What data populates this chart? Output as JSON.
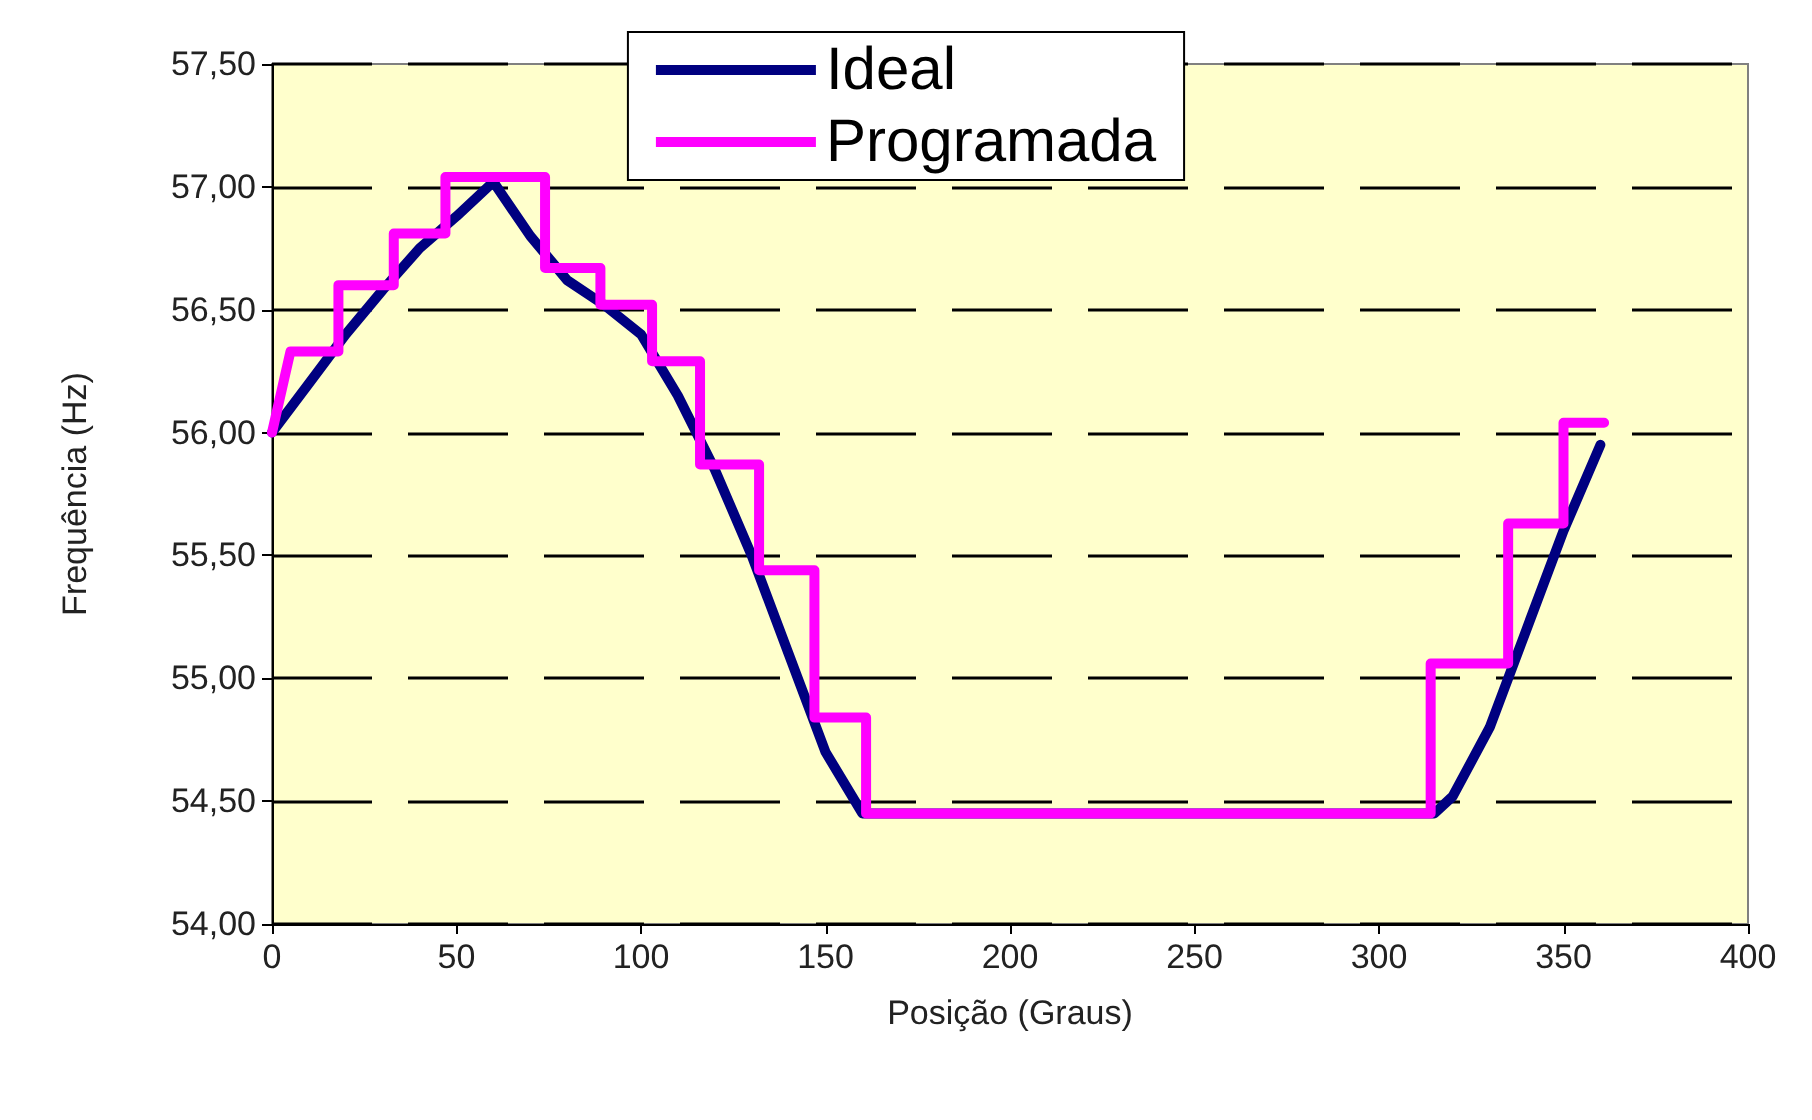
{
  "chart_data": {
    "type": "line",
    "xlabel": "Posição (Graus)",
    "ylabel": "Frequência (Hz)",
    "xlim": [
      0,
      400
    ],
    "xticks": [
      0,
      50,
      100,
      150,
      200,
      250,
      300,
      350,
      400
    ],
    "ylim": [
      54,
      57.5
    ],
    "yticks": [
      {
        "value": 54,
        "label": "54,00"
      },
      {
        "value": 54.5,
        "label": "54,50"
      },
      {
        "value": 55,
        "label": "55,00"
      },
      {
        "value": 55.5,
        "label": "55,50"
      },
      {
        "value": 56,
        "label": "56,00"
      },
      {
        "value": 56.5,
        "label": "56,50"
      },
      {
        "value": 57,
        "label": "57,00"
      },
      {
        "value": 57.5,
        "label": "57,50"
      }
    ],
    "grid": "y",
    "legend": "top",
    "marker": "none",
    "line_style": "solid",
    "series": [
      {
        "name": "Ideal",
        "color": "#000080",
        "x": [
          0,
          10,
          20,
          30,
          40,
          50,
          60,
          70,
          80,
          90,
          100,
          110,
          120,
          130,
          140,
          150,
          160,
          200,
          250,
          300,
          315,
          320,
          330,
          340,
          350,
          360
        ],
        "values": [
          56.0,
          56.2,
          56.4,
          56.58,
          56.75,
          56.88,
          57.02,
          56.8,
          56.62,
          56.52,
          56.4,
          56.15,
          55.85,
          55.5,
          55.1,
          54.7,
          54.45,
          54.45,
          54.45,
          54.45,
          54.45,
          54.52,
          54.8,
          55.2,
          55.6,
          55.95
        ]
      },
      {
        "name": "Programada",
        "color": "#ff00ff",
        "x": [
          0,
          5,
          18,
          18,
          33,
          33,
          47,
          47,
          74,
          74,
          89,
          89,
          103,
          103,
          116,
          116,
          132,
          132,
          147,
          147,
          161,
          161,
          314,
          314,
          335,
          335,
          350,
          350,
          361
        ],
        "values": [
          56.0,
          56.33,
          56.33,
          56.6,
          56.6,
          56.81,
          56.81,
          57.04,
          57.04,
          56.67,
          56.67,
          56.52,
          56.52,
          56.29,
          56.29,
          55.87,
          55.87,
          55.44,
          55.44,
          54.84,
          54.84,
          54.45,
          54.45,
          55.06,
          55.06,
          55.63,
          55.63,
          56.04,
          56.04
        ]
      }
    ]
  }
}
